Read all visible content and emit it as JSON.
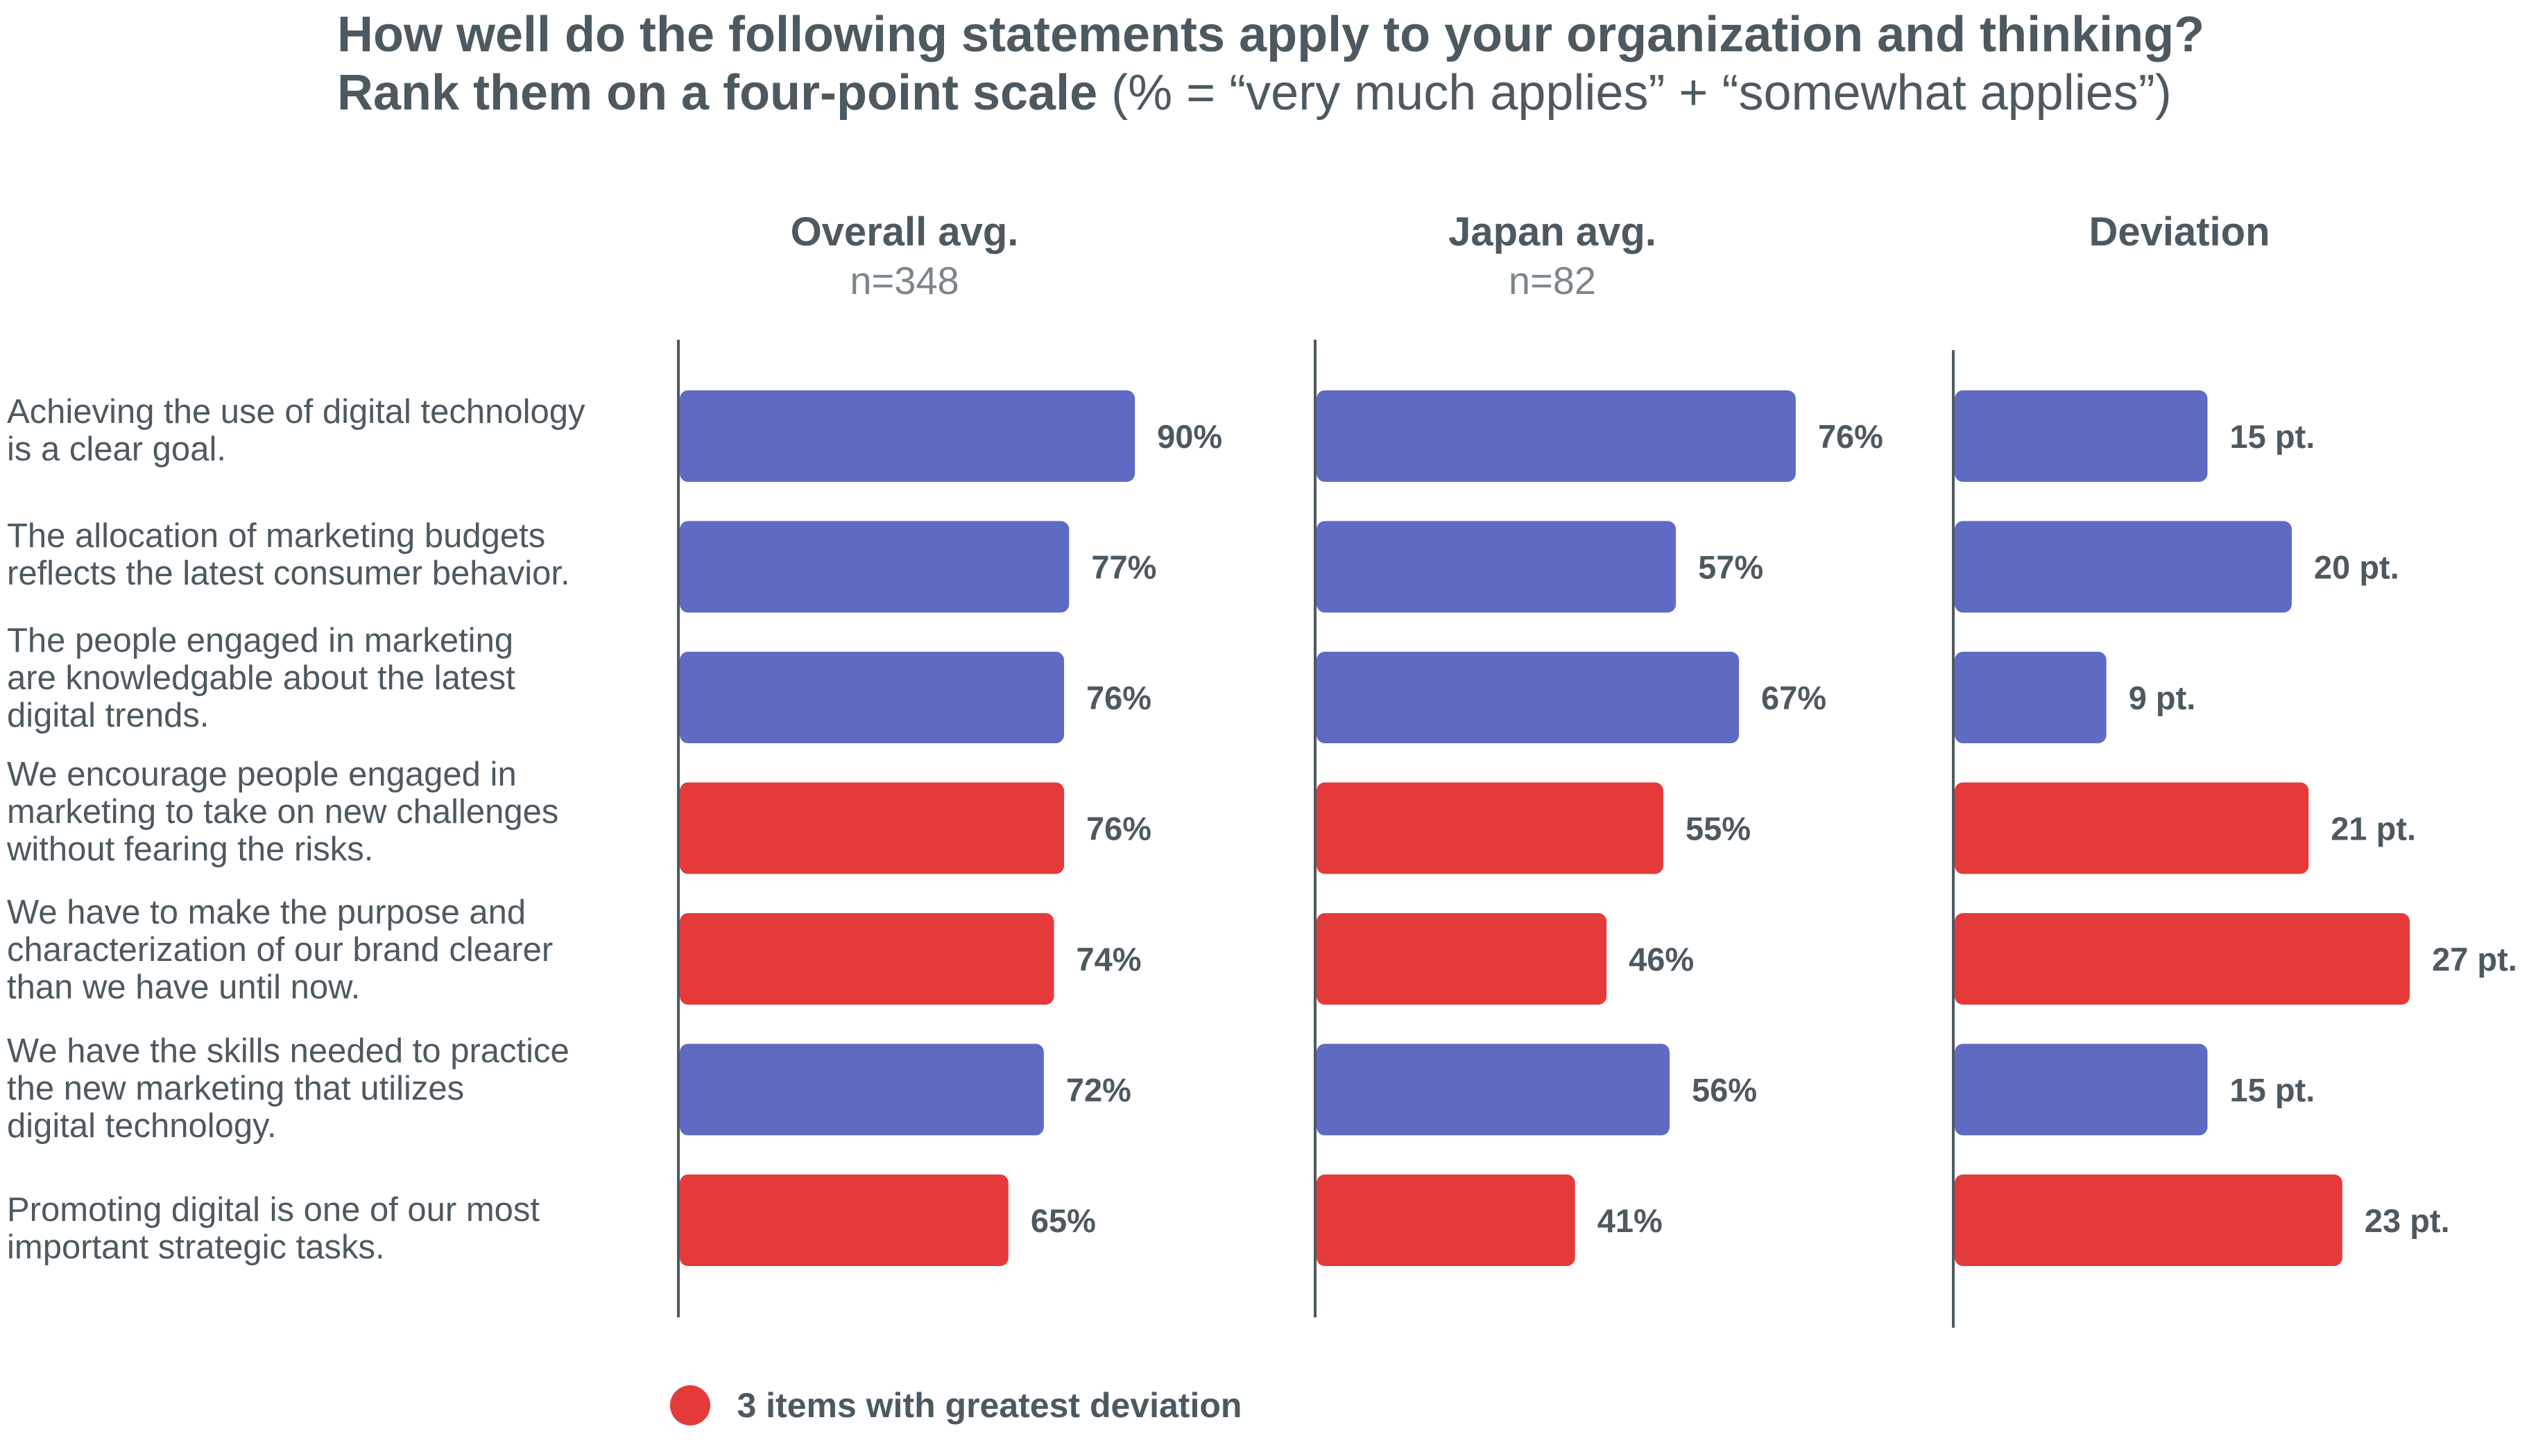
{
  "chart_data": {
    "type": "bar",
    "title": {
      "line1": "How well do the following statements apply to your organization and thinking?",
      "line2_bold": "Rank them on a four-point scale",
      "line2_normal": "(% = “very much applies” + “somewhat applies”)"
    },
    "categories": [
      [
        "Achieving the use of digital technology",
        "is a clear goal."
      ],
      [
        "The allocation of marketing budgets",
        "reflects the latest consumer behavior."
      ],
      [
        "The people engaged in marketing",
        "are knowledgable about the latest",
        "digital trends."
      ],
      [
        "We encourage people engaged in",
        "marketing to take on new challenges",
        "without fearing the risks."
      ],
      [
        "We have to make the purpose and",
        "characterization of our brand clearer",
        "than we have until now."
      ],
      [
        "We have the skills needed to practice",
        "the new marketing that utilizes",
        "digital technology."
      ],
      [
        "Promoting digital is one of our most",
        "important strategic tasks."
      ]
    ],
    "highlight": [
      false,
      false,
      false,
      true,
      true,
      false,
      true
    ],
    "series": [
      {
        "name": "Overall avg.",
        "subtitle": "n=348",
        "values": [
          90,
          77,
          76,
          76,
          74,
          72,
          65
        ],
        "labels": [
          "90%",
          "77%",
          "76%",
          "76%",
          "74%",
          "72%",
          "65%"
        ],
        "xlim": [
          0,
          100
        ]
      },
      {
        "name": "Japan avg.",
        "subtitle": "n=82",
        "values": [
          76,
          57,
          67,
          55,
          46,
          56,
          41
        ],
        "labels": [
          "76%",
          "57%",
          "67%",
          "55%",
          "46%",
          "56%",
          "41%"
        ],
        "xlim": [
          0,
          100
        ]
      },
      {
        "name": "Deviation",
        "subtitle": "",
        "values": [
          15,
          20,
          9,
          21,
          27,
          15,
          23
        ],
        "labels": [
          "15 pt.",
          "20 pt.",
          "9 pt.",
          "21 pt.",
          "27 pt.",
          "15 pt.",
          "23 pt."
        ],
        "xlim": [
          0,
          42
        ]
      }
    ],
    "legend": {
      "label": "3 items with greatest deviation",
      "position": "bottom"
    },
    "colors": {
      "normal": "#5f6bc2",
      "highlight": "#e53a3a",
      "axis": "#4d5960",
      "text": "#4d5960"
    }
  }
}
